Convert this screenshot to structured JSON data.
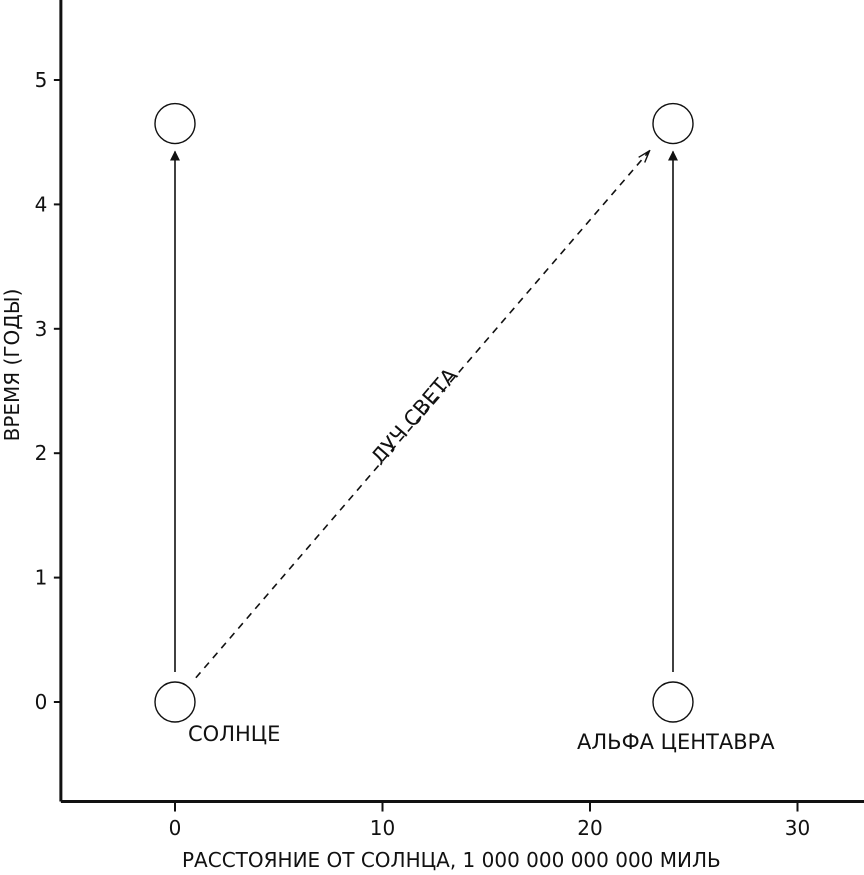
{
  "chart_data": {
    "type": "spacetime-diagram",
    "xlabel": "РАССТОЯНИЕ ОТ СОЛНЦА, 1 000 000 000 000 МИЛЬ",
    "ylabel": "ВРЕМЯ (ГОДЫ)",
    "xlim": [
      -5.5,
      33.5
    ],
    "ylim": [
      -0.8,
      5.65
    ],
    "xticks": [
      0,
      10,
      20,
      30
    ],
    "yticks": [
      0,
      1,
      2,
      3,
      4,
      5
    ],
    "objects": [
      {
        "name": "СОЛНЦЕ",
        "x": 0,
        "t_start": 0,
        "t_end": 4.65
      },
      {
        "name": "АЛЬФА ЦЕНТАВРА",
        "x": 24,
        "t_start": 0,
        "t_end": 4.65
      }
    ],
    "light_ray": {
      "label": "ЛУЧ СВЕТА",
      "from": [
        0,
        0
      ],
      "to": [
        24,
        4.65
      ],
      "style": "dashed"
    }
  }
}
